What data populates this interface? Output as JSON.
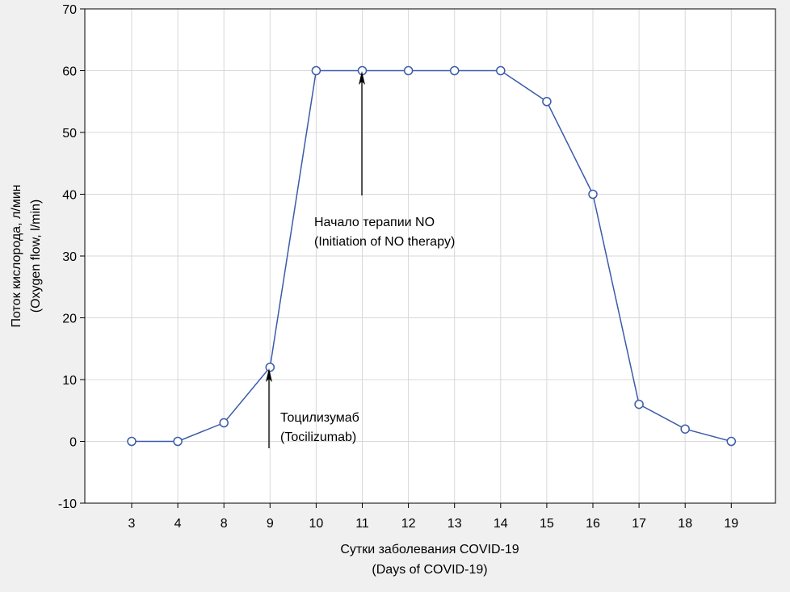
{
  "chart_data": {
    "type": "line",
    "categories": [
      "3",
      "4",
      "8",
      "9",
      "10",
      "11",
      "12",
      "13",
      "14",
      "15",
      "16",
      "17",
      "18",
      "19"
    ],
    "series": [
      {
        "values": [
          0,
          0,
          3,
          12,
          60,
          60,
          60,
          60,
          60,
          55,
          40,
          6,
          2,
          0
        ],
        "color": "#3a5ba8",
        "marker": "open-circle"
      }
    ],
    "xlabel": [
      "Сутки заболевания COVID-19",
      "(Days of COVID-19)"
    ],
    "ylabel": [
      "Поток кислорода, л/мин",
      "(Oxygen flow, l/min)"
    ],
    "ylim": [
      -10,
      70
    ],
    "yticks": [
      -10,
      0,
      10,
      20,
      30,
      40,
      50,
      60,
      70
    ],
    "grid": true,
    "annotations": [
      {
        "lines": [
          "Тоцилизумаб",
          "(Tocilizumab)"
        ],
        "category": "9"
      },
      {
        "lines": [
          "Начало терапии NO",
          "(Initiation of NO therapy)"
        ],
        "category": "11"
      }
    ]
  }
}
